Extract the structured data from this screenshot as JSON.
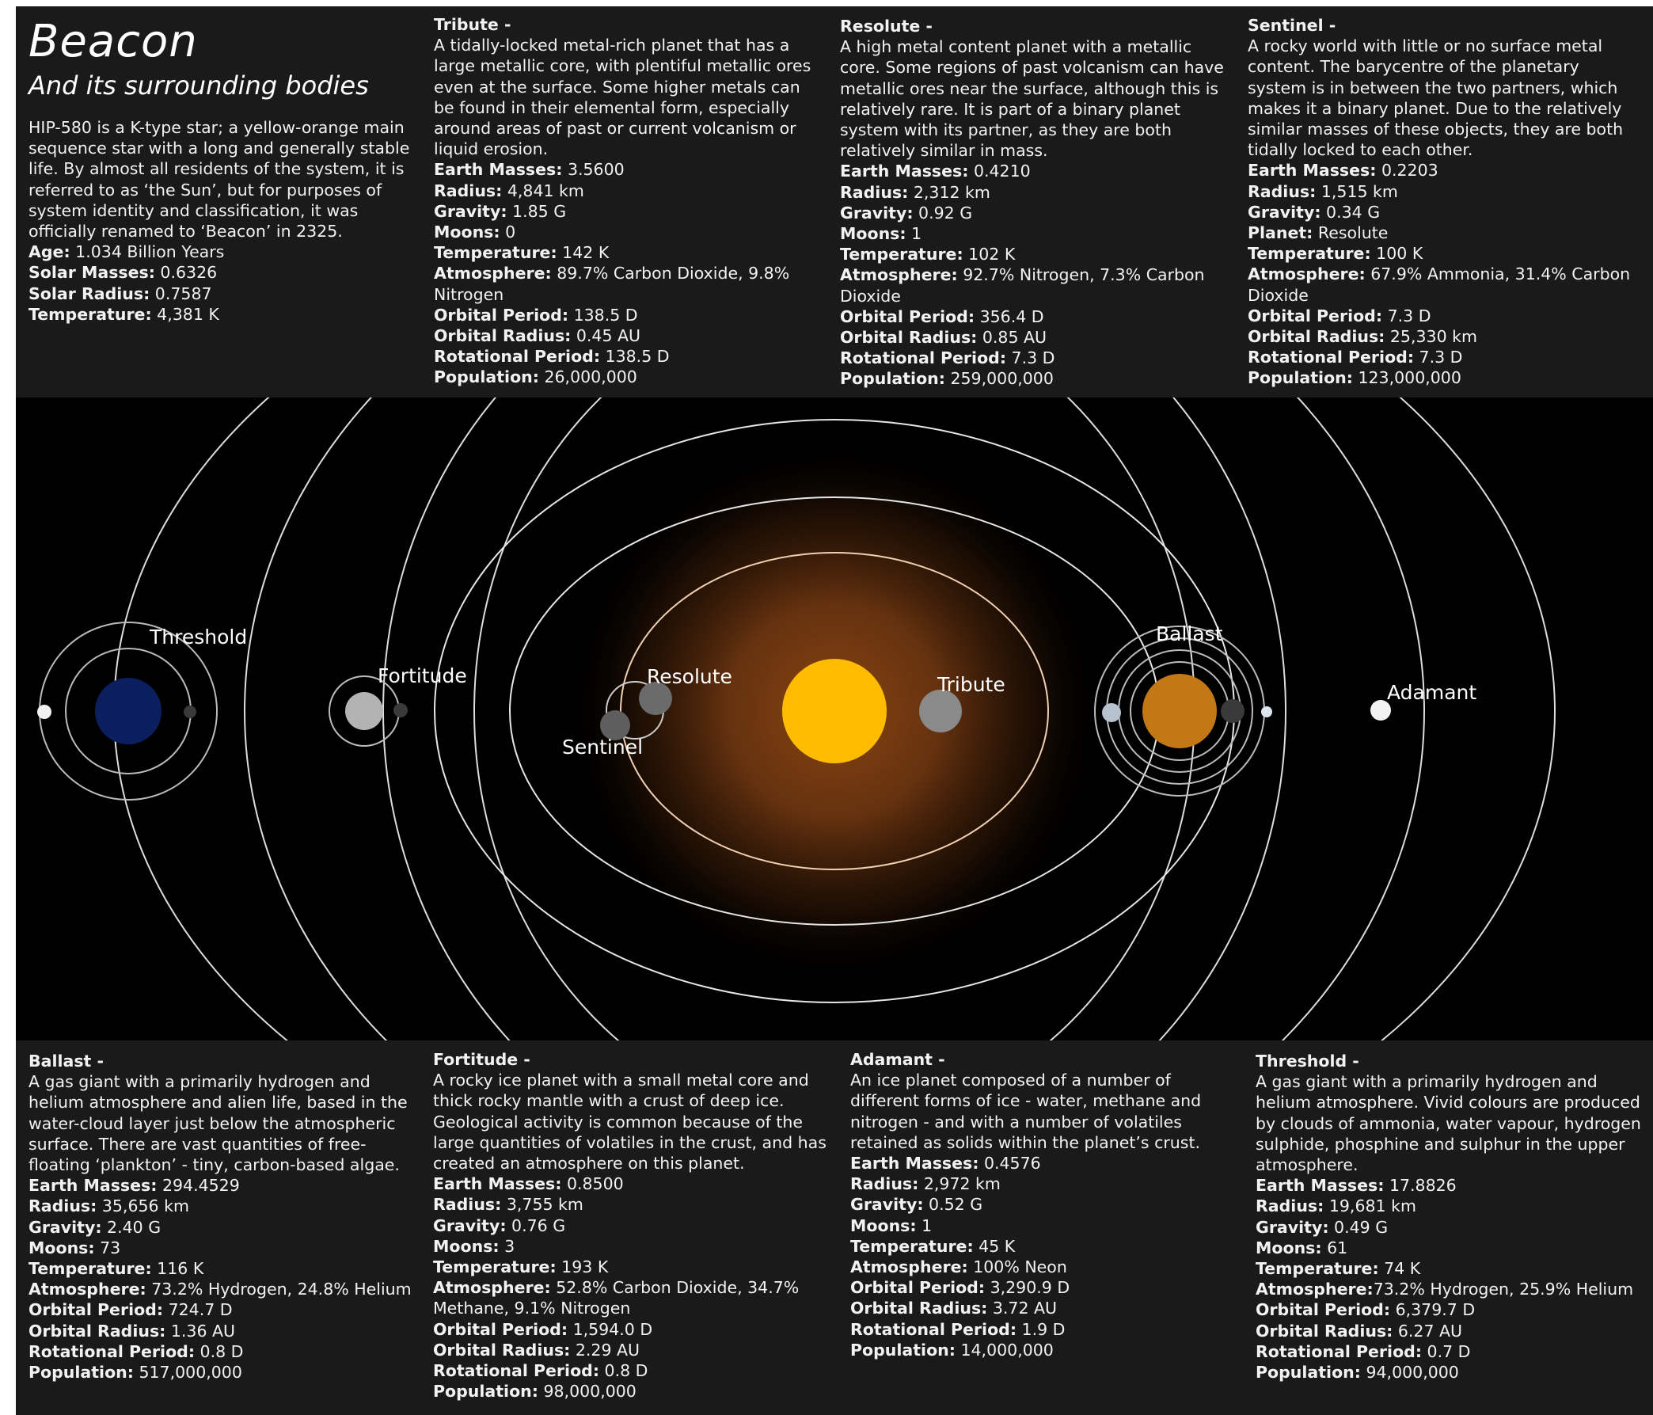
{
  "header": {
    "title": "Beacon",
    "subtitle": "And its surrounding bodies",
    "description": "HIP-580 is a K-type star; a yellow-orange main sequence star with a long and generally stable life. By almost all residents of the system, it is referred to as ‘the Sun’, but for purposes of system identity and classification, it was officially renamed to ‘Beacon’ in 2325.",
    "stats": [
      {
        "label": "Age:",
        "value": " 1.034 Billion Years"
      },
      {
        "label": "Solar Masses:",
        "value": " 0.6326"
      },
      {
        "label": "Solar Radius:",
        "value": " 0.7587"
      },
      {
        "label": "Temperature:",
        "value": " 4,381 K"
      }
    ]
  },
  "bodies_top": [
    {
      "name": "Tribute -",
      "description": "A tidally-locked metal-rich planet that has a large metallic core, with plentiful metallic ores even at the surface. Some higher metals can be found in their elemental form, especially around areas of past or current volcanism or liquid erosion.",
      "stats": [
        {
          "label": "Earth Masses:",
          "value": " 3.5600"
        },
        {
          "label": "Radius:",
          "value": " 4,841 km"
        },
        {
          "label": "Gravity:",
          "value": " 1.85 G"
        },
        {
          "label": "Moons:",
          "value": " 0"
        },
        {
          "label": "Temperature:",
          "value": " 142 K"
        },
        {
          "label": "Atmosphere:",
          "value": " 89.7% Carbon Dioxide, 9.8% Nitrogen"
        },
        {
          "label": "Orbital Period:",
          "value": " 138.5 D"
        },
        {
          "label": "Orbital Radius:",
          "value": " 0.45 AU"
        },
        {
          "label": "Rotational Period:",
          "value": " 138.5 D"
        },
        {
          "label": "Population:",
          "value": " 26,000,000"
        }
      ]
    },
    {
      "name": "Resolute -",
      "description": "A high metal content planet with a metallic core. Some regions of past volcanism can have metallic ores near the surface, although this is relatively rare. It is part of a binary planet system with its partner, as they are both relatively similar in mass.",
      "stats": [
        {
          "label": "Earth Masses:",
          "value": " 0.4210"
        },
        {
          "label": "Radius:",
          "value": " 2,312 km"
        },
        {
          "label": "Gravity:",
          "value": " 0.92 G"
        },
        {
          "label": "Moons:",
          "value": " 1"
        },
        {
          "label": "Temperature:",
          "value": " 102 K"
        },
        {
          "label": "Atmosphere:",
          "value": " 92.7% Nitrogen, 7.3% Carbon Dioxide"
        },
        {
          "label": "Orbital Period:",
          "value": " 356.4 D"
        },
        {
          "label": "Orbital Radius:",
          "value": " 0.85 AU"
        },
        {
          "label": "Rotational Period:",
          "value": " 7.3 D"
        },
        {
          "label": "Population:",
          "value": " 259,000,000"
        }
      ]
    },
    {
      "name": "Sentinel -",
      "description": "A rocky world with little or no surface metal content. The barycentre of the planetary system is in between the two partners, which makes it a binary planet. Due to the relatively similar masses of these objects, they are both tidally locked to each other.",
      "stats": [
        {
          "label": "Earth Masses:",
          "value": " 0.2203"
        },
        {
          "label": "Radius:",
          "value": " 1,515 km"
        },
        {
          "label": "Gravity:",
          "value": " 0.34 G"
        },
        {
          "label": "Planet:",
          "value": " Resolute"
        },
        {
          "label": "Temperature:",
          "value": " 100 K"
        },
        {
          "label": "Atmosphere:",
          "value": " 67.9% Ammonia, 31.4% Carbon Dioxide"
        },
        {
          "label": "Orbital Period:",
          "value": " 7.3 D"
        },
        {
          "label": "Orbital Radius:",
          "value": " 25,330 km"
        },
        {
          "label": "Rotational Period:",
          "value": " 7.3 D"
        },
        {
          "label": "Population:",
          "value": " 123,000,000"
        }
      ]
    }
  ],
  "bodies_bottom": [
    {
      "name": "Ballast -",
      "description": "A gas giant with a primarily hydrogen and helium atmosphere and alien life, based in the water-cloud layer just below the atmospheric surface. There are vast quantities of free-floating ‘plankton’ - tiny, carbon-based algae.",
      "stats": [
        {
          "label": "Earth Masses:",
          "value": " 294.4529"
        },
        {
          "label": "Radius:",
          "value": " 35,656 km"
        },
        {
          "label": "Gravity:",
          "value": " 2.40 G"
        },
        {
          "label": "Moons:",
          "value": " 73"
        },
        {
          "label": "Temperature:",
          "value": " 116 K"
        },
        {
          "label": "Atmosphere:",
          "value": " 73.2% Hydrogen, 24.8% Helium"
        },
        {
          "label": "Orbital Period:",
          "value": " 724.7 D"
        },
        {
          "label": "Orbital Radius:",
          "value": " 1.36 AU"
        },
        {
          "label": "Rotational Period:",
          "value": " 0.8 D"
        },
        {
          "label": "Population:",
          "value": " 517,000,000"
        }
      ]
    },
    {
      "name": "Fortitude -",
      "description": "A rocky ice planet with a small metal core and thick rocky mantle with a crust of deep ice. Geological activity is common because of the large quantities of volatiles in the crust, and has created an atmosphere on this planet.",
      "stats": [
        {
          "label": "Earth Masses:",
          "value": " 0.8500"
        },
        {
          "label": "Radius:",
          "value": " 3,755 km"
        },
        {
          "label": "Gravity:",
          "value": " 0.76 G"
        },
        {
          "label": "Moons:",
          "value": " 3"
        },
        {
          "label": "Temperature:",
          "value": " 193 K"
        },
        {
          "label": "Atmosphere:",
          "value": " 52.8% Carbon Dioxide, 34.7% Methane, 9.1% Nitrogen"
        },
        {
          "label": "Orbital Period:",
          "value": " 1,594.0 D"
        },
        {
          "label": "Orbital Radius:",
          "value": " 2.29 AU"
        },
        {
          "label": "Rotational Period:",
          "value": " 0.8 D"
        },
        {
          "label": "Population:",
          "value": " 98,000,000"
        }
      ]
    },
    {
      "name": "Adamant -",
      "description": "An ice planet composed of a number of different forms of ice - water, methane and nitrogen - and with a number of volatiles retained as solids within the planet’s crust.",
      "stats": [
        {
          "label": "Earth Masses:",
          "value": " 0.4576"
        },
        {
          "label": "Radius:",
          "value": " 2,972 km"
        },
        {
          "label": "Gravity:",
          "value": " 0.52 G"
        },
        {
          "label": "Moons:",
          "value": " 1"
        },
        {
          "label": "Temperature:",
          "value": " 45 K"
        },
        {
          "label": "Atmosphere:",
          "value": " 100% Neon"
        },
        {
          "label": "Orbital Period:",
          "value": " 3,290.9 D"
        },
        {
          "label": "Orbital Radius:",
          "value": " 3.72 AU"
        },
        {
          "label": "Rotational Period:",
          "value": " 1.9 D"
        },
        {
          "label": "Population:",
          "value": " 14,000,000"
        }
      ]
    },
    {
      "name": "Threshold -",
      "description": "A gas giant with a primarily hydrogen and helium atmosphere. Vivid colours are produced by clouds of ammonia, water vapour, hydrogen sulphide, phosphine and sulphur in the upper atmosphere.",
      "stats": [
        {
          "label": "Earth Masses:",
          "value": " 17.8826"
        },
        {
          "label": "Radius:",
          "value": " 19,681 km"
        },
        {
          "label": "Gravity:",
          "value": " 0.49 G"
        },
        {
          "label": "Moons:",
          "value": " 61"
        },
        {
          "label": "Temperature:",
          "value": " 74 K"
        },
        {
          "label": "Atmosphere:",
          "value": "73.2% Hydrogen, 25.9% Helium"
        },
        {
          "label": "Orbital Period:",
          "value": " 6,379.7 D"
        },
        {
          "label": "Orbital Radius:",
          "value": " 6.27 AU"
        },
        {
          "label": "Rotational Period:",
          "value": " 0.7 D"
        },
        {
          "label": "Population:",
          "value": " 94,000,000"
        }
      ]
    }
  ],
  "map_labels": {
    "threshold": "Threshold",
    "fortitude": "Fortitude",
    "resolute": "Resolute",
    "sentinel": "Sentinel",
    "tribute": "Tribute",
    "ballast": "Ballast",
    "adamant": "Adamant"
  },
  "colors": {
    "star": "#ffbb00",
    "threshold": "#0b1f5e",
    "ballast": "#c27815",
    "glow": "#7a3d10"
  }
}
